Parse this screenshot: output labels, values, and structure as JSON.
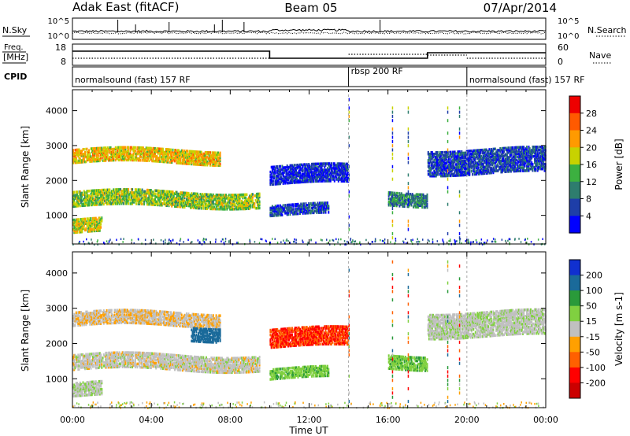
{
  "header": {
    "station": "Adak East (fitACF)",
    "beam": "Beam 05",
    "date": "07/Apr/2014"
  },
  "noise_panel": {
    "left_label": "N.Sky",
    "left_ticks": [
      "10^5",
      "10^0"
    ],
    "right_label": "N.Search",
    "right_ticks": [
      "10^5",
      "10^0"
    ]
  },
  "freq_panel": {
    "left_label_1": "Freq.",
    "left_label_2": "[MHz]",
    "left_ticks": [
      "18",
      "8"
    ],
    "right_label": "Nave",
    "right_ticks": [
      "60",
      "0"
    ]
  },
  "cpid_panel": {
    "label": "CPID",
    "segments": [
      {
        "name": "normalsound (fast) 157 RF",
        "start_h": 0,
        "end_h": 14
      },
      {
        "name": "rbsp 200 RF",
        "start_h": 14,
        "end_h": 20
      },
      {
        "name": "normalsound (fast) 157 RF",
        "start_h": 20,
        "end_h": 24
      }
    ]
  },
  "x_axis": {
    "label": "Time UT",
    "ticks": [
      "00:00",
      "04:00",
      "08:00",
      "12:00",
      "16:00",
      "20:00",
      "00:00"
    ]
  },
  "power_colorbar": {
    "label": "Power [dB]",
    "ticks": [
      "28",
      "24",
      "20",
      "16",
      "12",
      "8",
      "4"
    ],
    "colors": [
      "#0000ff",
      "#1e3ea8",
      "#2e7d6e",
      "#3cb040",
      "#c8d200",
      "#ff9a00",
      "#ff5a00",
      "#ee0000"
    ]
  },
  "velocity_colorbar": {
    "label": "Velocity [m s-1]",
    "ticks": [
      "200",
      "100",
      "50",
      "15",
      "-15",
      "-50",
      "-100",
      "-200"
    ],
    "colors": [
      "#1030d0",
      "#1a6a9a",
      "#2a9a3a",
      "#80d040",
      "#c0c0c0",
      "#ffa000",
      "#ff6000",
      "#ff0000",
      "#cc0000"
    ]
  },
  "chart_data": [
    {
      "type": "heatmap",
      "title": "Power",
      "ylabel": "Slant Range [km]",
      "xlabel": "Time UT",
      "xlim": [
        0,
        24
      ],
      "ylim": [
        180,
        4600
      ],
      "yticks": [
        1000,
        2000,
        3000,
        4000
      ],
      "zlabel": "Power [dB]",
      "echo_bands": [
        {
          "t0": 0.0,
          "t1": 7.5,
          "r0": 2500,
          "r1": 2900,
          "power_db": 20
        },
        {
          "t0": 0.0,
          "t1": 9.5,
          "r0": 1250,
          "r1": 1700,
          "power_db": 16
        },
        {
          "t0": 0.0,
          "t1": 1.5,
          "r0": 500,
          "r1": 900,
          "power_db": 18
        },
        {
          "t0": 10.0,
          "t1": 14.0,
          "r0": 1900,
          "r1": 2400,
          "power_db": 4
        },
        {
          "t0": 10.0,
          "t1": 13.0,
          "r0": 1000,
          "r1": 1300,
          "power_db": 6
        },
        {
          "t0": 16.0,
          "t1": 18.0,
          "r0": 1300,
          "r1": 1700,
          "power_db": 10
        },
        {
          "t0": 18.0,
          "t1": 24.0,
          "r0": 2200,
          "r1": 2900,
          "power_db": 6
        }
      ]
    },
    {
      "type": "heatmap",
      "title": "Velocity",
      "ylabel": "Slant Range [km]",
      "xlabel": "Time UT",
      "xlim": [
        0,
        24
      ],
      "ylim": [
        180,
        4600
      ],
      "yticks": [
        1000,
        2000,
        3000,
        4000
      ],
      "zlabel": "Velocity [m s-1]",
      "echo_bands": [
        {
          "t0": 0.0,
          "t1": 7.5,
          "r0": 2500,
          "r1": 2900,
          "velocity": -10
        },
        {
          "t0": 0.0,
          "t1": 9.5,
          "r0": 1250,
          "r1": 1700,
          "velocity": 0
        },
        {
          "t0": 0.0,
          "t1": 1.5,
          "r0": 500,
          "r1": 900,
          "velocity": 5
        },
        {
          "t0": 6.0,
          "t1": 7.5,
          "r0": 2100,
          "r1": 2500,
          "velocity": 150
        },
        {
          "t0": 10.0,
          "t1": 14.0,
          "r0": 1900,
          "r1": 2400,
          "velocity": -100
        },
        {
          "t0": 10.0,
          "t1": 13.0,
          "r0": 1000,
          "r1": 1300,
          "velocity": 40
        },
        {
          "t0": 16.0,
          "t1": 18.0,
          "r0": 1300,
          "r1": 1700,
          "velocity": 40
        },
        {
          "t0": 18.0,
          "t1": 24.0,
          "r0": 2200,
          "r1": 2900,
          "velocity": 5
        }
      ]
    }
  ]
}
